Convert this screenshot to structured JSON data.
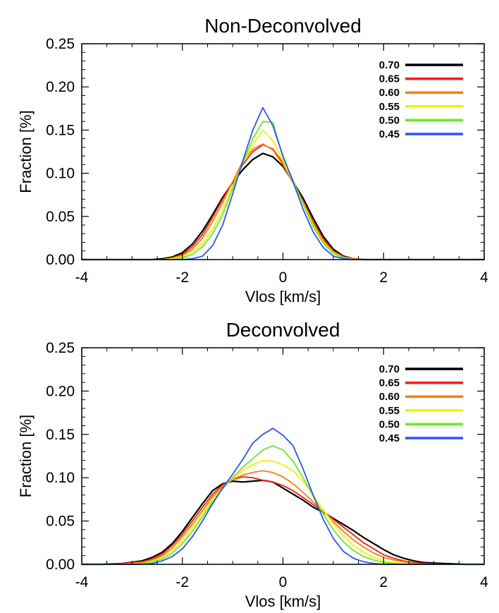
{
  "colors": {
    "0.70": "#000000",
    "0.65": "#ff1a00",
    "0.60": "#ff7a10",
    "0.55": "#f2f200",
    "0.50": "#6ee82a",
    "0.45": "#2a55ff"
  },
  "chart_data": [
    {
      "type": "line",
      "title": "Non-Deconvolved",
      "xlabel": "Vlos [km/s]",
      "ylabel": "Fraction [%]",
      "xlim": [
        -4,
        4
      ],
      "ylim": [
        0,
        0.25
      ],
      "xticks": [
        "-4",
        "-2",
        "0",
        "2",
        "4"
      ],
      "yticks": [
        "0.00",
        "0.05",
        "0.10",
        "0.15",
        "0.20",
        "0.25"
      ],
      "legend_position": "top-right",
      "x": [
        -4.0,
        -3.6,
        -3.2,
        -2.8,
        -2.6,
        -2.4,
        -2.2,
        -2.0,
        -1.8,
        -1.6,
        -1.4,
        -1.2,
        -1.0,
        -0.8,
        -0.6,
        -0.4,
        -0.2,
        0.0,
        0.2,
        0.4,
        0.6,
        0.8,
        1.0,
        1.2,
        1.4,
        1.6,
        2.0,
        2.4,
        3.0,
        4.0
      ],
      "series": [
        {
          "name": "0.70",
          "values": [
            0,
            0,
            0,
            0,
            0,
            0.001,
            0.003,
            0.008,
            0.018,
            0.033,
            0.052,
            0.072,
            0.089,
            0.104,
            0.116,
            0.123,
            0.119,
            0.108,
            0.09,
            0.071,
            0.048,
            0.027,
            0.012,
            0.004,
            0.001,
            0,
            0,
            0,
            0,
            0
          ]
        },
        {
          "name": "0.65",
          "values": [
            0,
            0,
            0,
            0,
            0,
            0,
            0.002,
            0.006,
            0.015,
            0.029,
            0.049,
            0.07,
            0.09,
            0.11,
            0.125,
            0.133,
            0.128,
            0.112,
            0.09,
            0.068,
            0.044,
            0.024,
            0.01,
            0.003,
            0.001,
            0,
            0,
            0,
            0,
            0
          ]
        },
        {
          "name": "0.60",
          "values": [
            0,
            0,
            0,
            0,
            0,
            0,
            0.002,
            0.005,
            0.012,
            0.025,
            0.044,
            0.066,
            0.09,
            0.114,
            0.128,
            0.134,
            0.127,
            0.11,
            0.089,
            0.066,
            0.042,
            0.022,
            0.009,
            0.003,
            0.001,
            0,
            0,
            0,
            0,
            0
          ]
        },
        {
          "name": "0.55",
          "values": [
            0,
            0,
            0,
            0,
            0,
            0,
            0.001,
            0.003,
            0.009,
            0.019,
            0.035,
            0.057,
            0.085,
            0.112,
            0.133,
            0.15,
            0.138,
            0.114,
            0.09,
            0.065,
            0.04,
            0.02,
            0.008,
            0.002,
            0,
            0,
            0,
            0,
            0,
            0
          ]
        },
        {
          "name": "0.50",
          "values": [
            0,
            0,
            0,
            0,
            0,
            0,
            0,
            0.002,
            0.006,
            0.015,
            0.03,
            0.052,
            0.082,
            0.112,
            0.14,
            0.16,
            0.159,
            0.118,
            0.092,
            0.064,
            0.038,
            0.019,
            0.007,
            0.002,
            0,
            0,
            0,
            0,
            0,
            0
          ]
        },
        {
          "name": "0.45",
          "values": [
            0,
            0,
            0,
            0,
            0,
            0,
            0,
            0,
            0.001,
            0.004,
            0.016,
            0.04,
            0.076,
            0.114,
            0.15,
            0.176,
            0.155,
            0.12,
            0.09,
            0.058,
            0.032,
            0.014,
            0.004,
            0.001,
            0,
            0,
            0,
            0,
            0,
            0
          ]
        }
      ]
    },
    {
      "type": "line",
      "title": "Deconvolved",
      "xlabel": "Vlos [km/s]",
      "ylabel": "Fraction [%]",
      "xlim": [
        -4,
        4
      ],
      "ylim": [
        0,
        0.25
      ],
      "xticks": [
        "-4",
        "-2",
        "0",
        "2",
        "4"
      ],
      "yticks": [
        "0.00",
        "0.05",
        "0.10",
        "0.15",
        "0.20",
        "0.25"
      ],
      "legend_position": "top-right",
      "x": [
        -4.0,
        -3.6,
        -3.2,
        -2.8,
        -2.6,
        -2.4,
        -2.2,
        -2.0,
        -1.8,
        -1.6,
        -1.4,
        -1.2,
        -1.0,
        -0.8,
        -0.6,
        -0.4,
        -0.2,
        0.0,
        0.2,
        0.4,
        0.6,
        0.8,
        1.0,
        1.2,
        1.4,
        1.6,
        1.8,
        2.0,
        2.2,
        2.4,
        2.6,
        2.8,
        3.2,
        3.6,
        4.0
      ],
      "series": [
        {
          "name": "0.70",
          "values": [
            0,
            0,
            0.001,
            0.004,
            0.008,
            0.014,
            0.024,
            0.038,
            0.054,
            0.07,
            0.085,
            0.093,
            0.096,
            0.095,
            0.096,
            0.097,
            0.095,
            0.088,
            0.081,
            0.074,
            0.066,
            0.06,
            0.053,
            0.046,
            0.039,
            0.031,
            0.024,
            0.017,
            0.011,
            0.007,
            0.004,
            0.002,
            0.001,
            0,
            0
          ]
        },
        {
          "name": "0.65",
          "values": [
            0,
            0,
            0.001,
            0.003,
            0.006,
            0.012,
            0.022,
            0.035,
            0.05,
            0.066,
            0.081,
            0.092,
            0.098,
            0.101,
            0.1,
            0.097,
            0.095,
            0.091,
            0.085,
            0.077,
            0.069,
            0.061,
            0.052,
            0.043,
            0.034,
            0.025,
            0.018,
            0.011,
            0.007,
            0.004,
            0.002,
            0.001,
            0,
            0,
            0
          ]
        },
        {
          "name": "0.60",
          "values": [
            0,
            0,
            0,
            0.002,
            0.005,
            0.01,
            0.019,
            0.032,
            0.046,
            0.062,
            0.078,
            0.09,
            0.098,
            0.103,
            0.106,
            0.108,
            0.106,
            0.101,
            0.093,
            0.083,
            0.072,
            0.061,
            0.049,
            0.038,
            0.028,
            0.02,
            0.013,
            0.008,
            0.005,
            0.003,
            0.001,
            0,
            0,
            0,
            0
          ]
        },
        {
          "name": "0.55",
          "values": [
            0,
            0,
            0,
            0.001,
            0.004,
            0.008,
            0.016,
            0.028,
            0.042,
            0.058,
            0.075,
            0.088,
            0.099,
            0.108,
            0.115,
            0.12,
            0.119,
            0.115,
            0.108,
            0.096,
            0.08,
            0.063,
            0.047,
            0.033,
            0.022,
            0.014,
            0.008,
            0.004,
            0.002,
            0.001,
            0,
            0,
            0,
            0,
            0
          ]
        },
        {
          "name": "0.50",
          "values": [
            0,
            0,
            0,
            0.001,
            0.003,
            0.006,
            0.013,
            0.024,
            0.038,
            0.055,
            0.072,
            0.087,
            0.1,
            0.112,
            0.122,
            0.132,
            0.137,
            0.132,
            0.119,
            0.1,
            0.079,
            0.058,
            0.04,
            0.026,
            0.016,
            0.009,
            0.005,
            0.002,
            0.001,
            0,
            0,
            0,
            0,
            0,
            0
          ]
        },
        {
          "name": "0.45",
          "values": [
            0,
            0,
            0,
            0,
            0.001,
            0.004,
            0.009,
            0.018,
            0.032,
            0.05,
            0.07,
            0.088,
            0.104,
            0.121,
            0.14,
            0.15,
            0.157,
            0.149,
            0.137,
            0.11,
            0.08,
            0.052,
            0.03,
            0.015,
            0.007,
            0.003,
            0.001,
            0,
            0,
            0,
            0,
            0,
            0,
            0,
            0
          ]
        }
      ]
    }
  ]
}
